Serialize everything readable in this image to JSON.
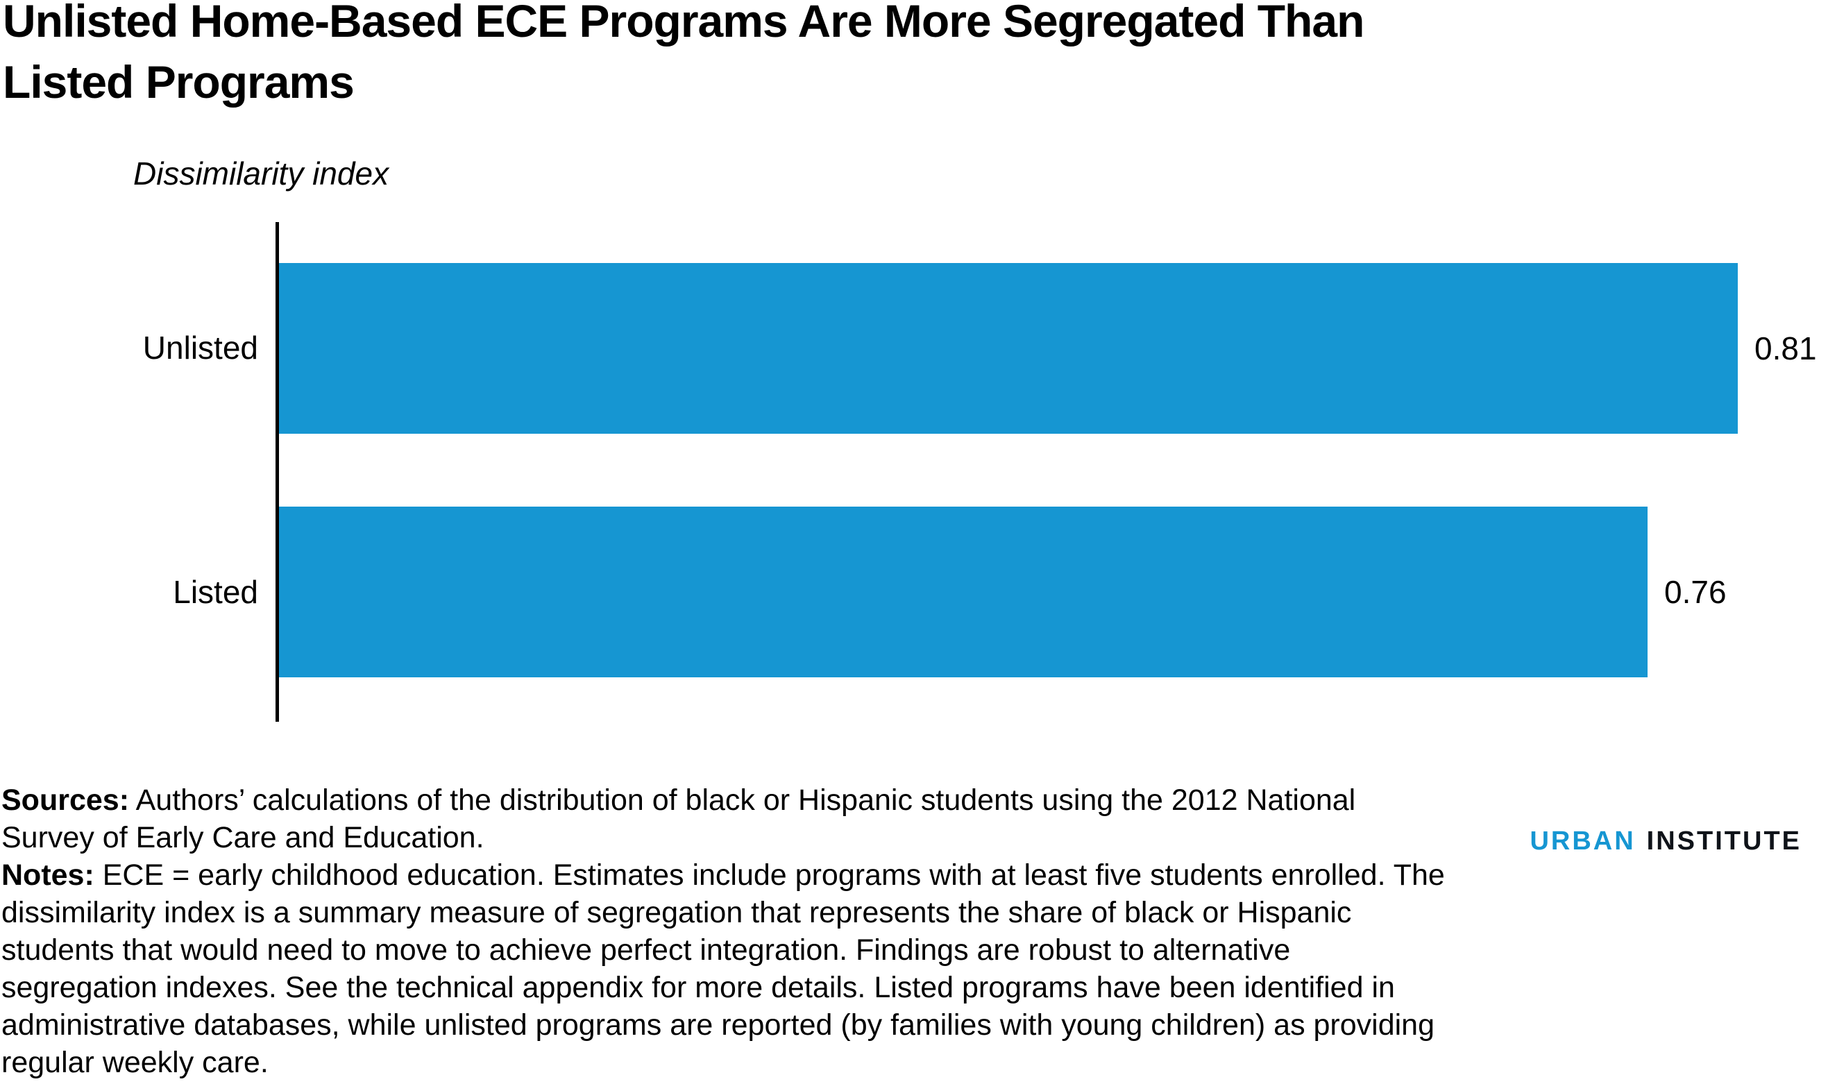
{
  "title": {
    "line1": "Unlisted Home-Based ECE Programs Are More Segregated Than",
    "line2": "Listed Programs"
  },
  "chart_data": {
    "type": "bar",
    "orientation": "horizontal",
    "title": "Unlisted Home-Based ECE Programs Are More Segregated Than Listed Programs",
    "axis_label": "Dissimilarity index",
    "categories": [
      "Unlisted",
      "Listed"
    ],
    "values": [
      0.81,
      0.76
    ],
    "value_labels": [
      "0.81",
      "0.76"
    ],
    "xlim": [
      0,
      0.86
    ],
    "bar_color": "#1696d2",
    "grid": false,
    "legend": false
  },
  "footer": {
    "sources_label": "Sources:",
    "sources_line1": "Authors’ calculations of the distribution of black or Hispanic students using the 2012 National",
    "sources_line2": "Survey of Early Care and Education.",
    "notes_label": "Notes:",
    "notes_line1": "ECE = early childhood education. Estimates include programs with at least five students enrolled. The",
    "notes_line2": "dissimilarity index is a summary measure of segregation that represents the share of black or Hispanic",
    "notes_line3": "students that would need to move to achieve perfect integration. Findings are robust to alternative",
    "notes_line4": "segregation indexes. See the technical appendix for more details. Listed programs have been identified in",
    "notes_line5": "administrative databases, while unlisted programs are reported (by families with young children) as providing",
    "notes_line6": "regular weekly care."
  },
  "logo": {
    "word1": "URBAN",
    "word2": "INSTITUTE",
    "word1_color": "#1696d2",
    "word2_color": "#0f1319"
  },
  "colors": {
    "bar": "#1696d2",
    "text": "#000000",
    "axis": "#000000",
    "background": "#ffffff"
  }
}
